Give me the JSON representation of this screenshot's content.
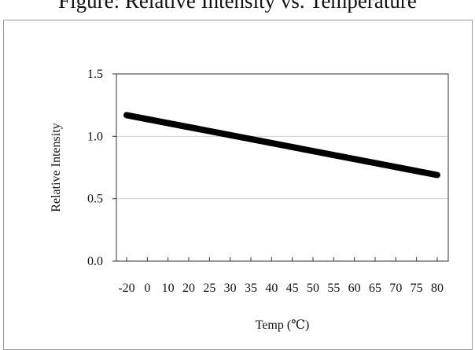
{
  "title": "Figure: Relative Intensity vs. Temperature",
  "chart_data": {
    "type": "line",
    "title": "Figure: Relative Intensity vs. Temperature",
    "xlabel": "Temp (℃)",
    "ylabel": "Relative Intensity",
    "x_ticks": [
      "-20",
      "0",
      "10",
      "20",
      "25",
      "30",
      "35",
      "40",
      "45",
      "50",
      "55",
      "60",
      "65",
      "70",
      "75",
      "80"
    ],
    "y_ticks": [
      "0.0",
      "0.5",
      "1.0",
      "1.5"
    ],
    "ylim": [
      0,
      1.5
    ],
    "grid": true,
    "series": [
      {
        "color": "#000000",
        "x": [
          "-20",
          "80"
        ],
        "values": [
          1.17,
          0.69
        ]
      }
    ]
  }
}
